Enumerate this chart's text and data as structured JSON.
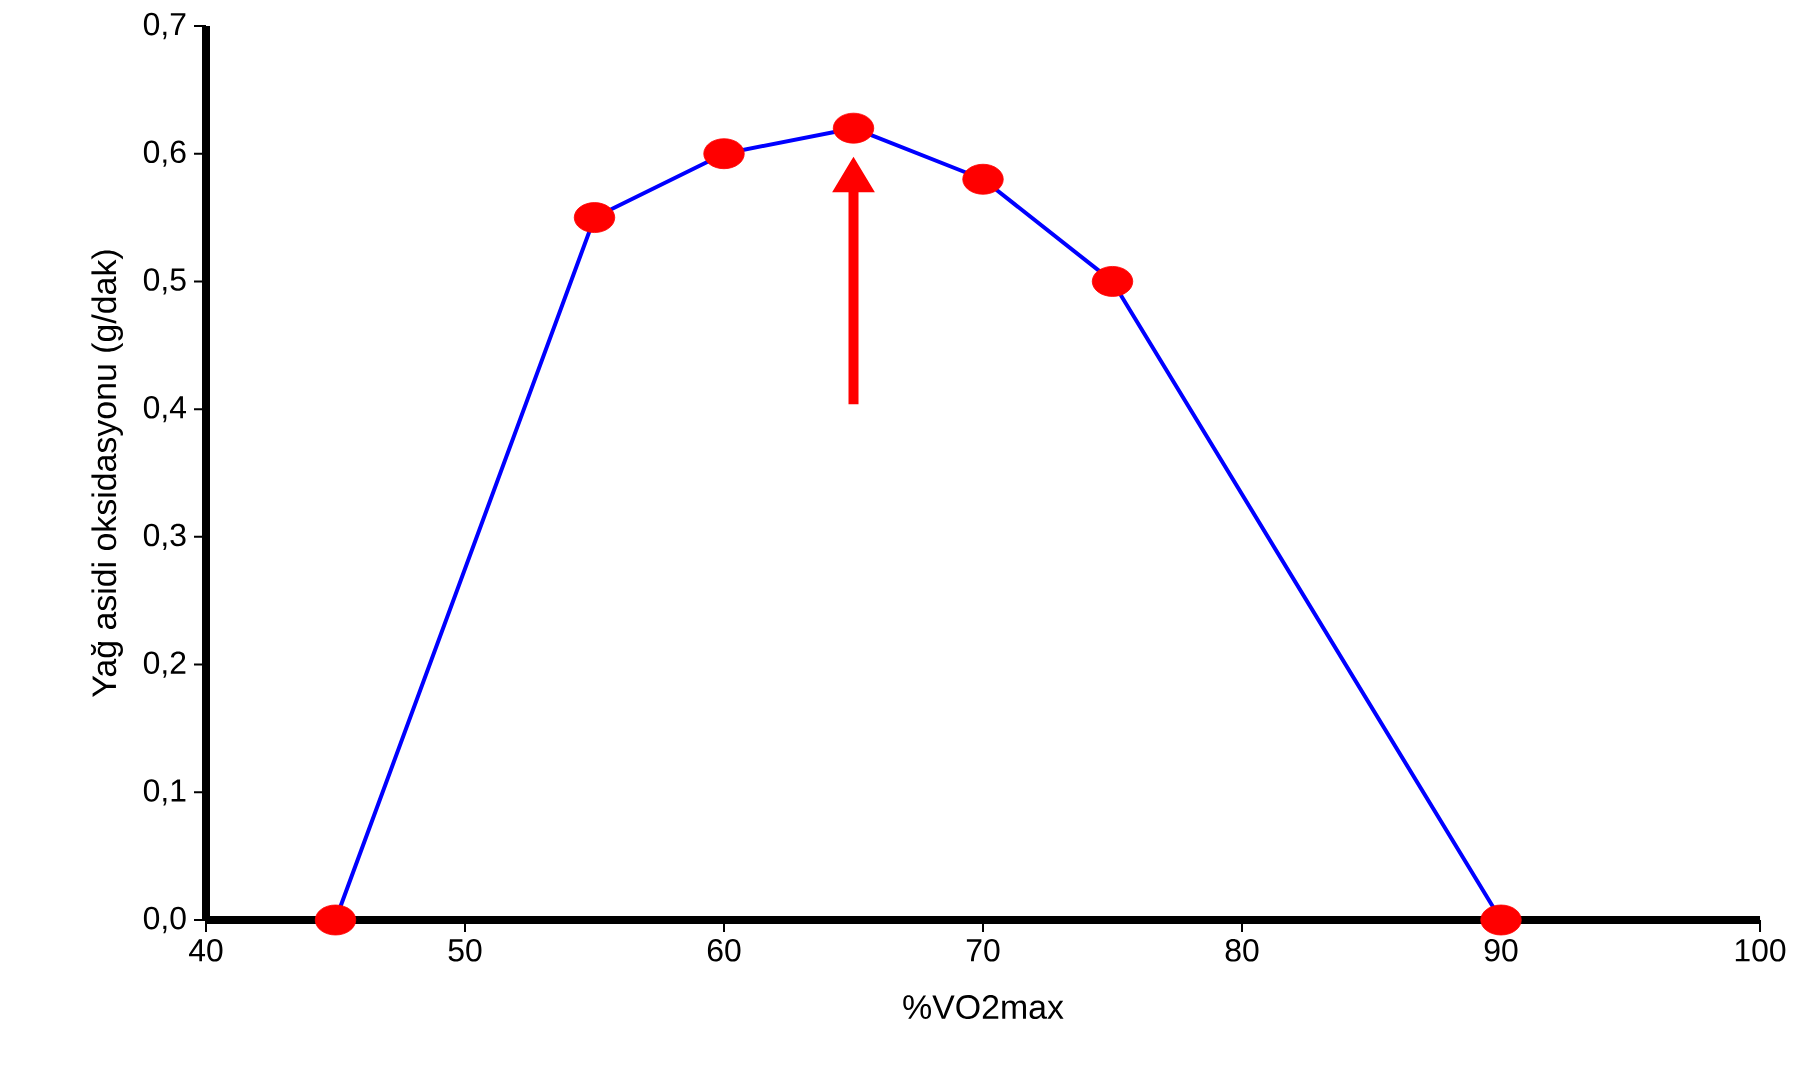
{
  "chart_data": {
    "type": "line",
    "xlabel": "%VO2max",
    "ylabel": "Yağ asidi oksidasyonu (g/dak)",
    "x": [
      45,
      55,
      60,
      65,
      70,
      75,
      90
    ],
    "series": [
      {
        "color": "#0000ff",
        "values": [
          0,
          0.55,
          0.6,
          0.62,
          0.58,
          0.5,
          0
        ],
        "colors": [
          "#ff0000",
          "#ff0000",
          "#ff0000",
          "#ff0000",
          "#ff0000",
          "#ff0000",
          "#ff0000"
        ]
      }
    ],
    "marker": "circle",
    "line_style": "solid",
    "grid": false,
    "xlim": [
      40,
      100
    ],
    "xticks": [
      40,
      50,
      60,
      70,
      80,
      90,
      100
    ],
    "ylim": [
      0,
      0.7
    ],
    "yticks": [
      {
        "value": 0,
        "label": "0,0"
      },
      {
        "value": 0.1,
        "label": "0,1"
      },
      {
        "value": 0.2,
        "label": "0,2"
      },
      {
        "value": 0.3,
        "label": "0,3"
      },
      {
        "value": 0.4,
        "label": "0,4"
      },
      {
        "value": 0.5,
        "label": "0,5"
      },
      {
        "value": 0.6,
        "label": "0,6"
      },
      {
        "value": 0.7,
        "label": "0,7"
      }
    ]
  }
}
